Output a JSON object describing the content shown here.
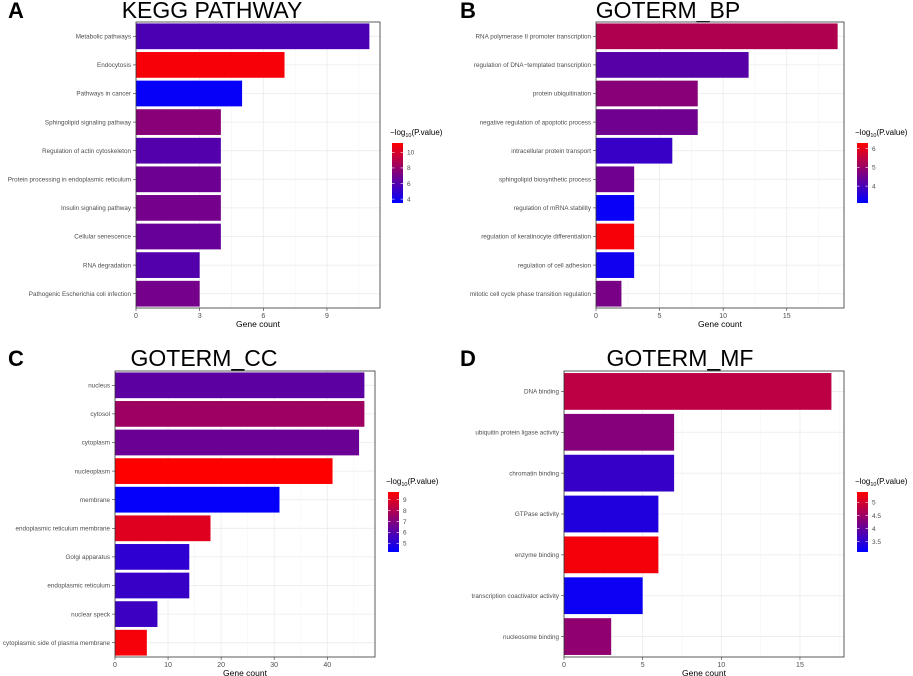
{
  "chart_data": [
    {
      "panel": "A",
      "title": "KEGG PATHWAY",
      "type": "bar",
      "orientation": "horizontal",
      "xlabel": "Gene count",
      "ylabel": "",
      "xlim": [
        0,
        11.5
      ],
      "xticks": [
        0,
        3,
        6,
        9
      ],
      "categories": [
        "Metabolic pathways",
        "Endocytosis",
        "Pathways in cancer",
        "Sphingolipid signaling pathway",
        "Regulation of actin cytoskeleton",
        "Protein processing in endoplasmic reticulum",
        "Insulin signaling pathway",
        "Cellular senescence",
        "RNA degradation",
        "Pathogenic Escherichia coli infection"
      ],
      "values": [
        11,
        7,
        5,
        4,
        4,
        4,
        4,
        4,
        3,
        3
      ],
      "color_values": [
        5.8,
        11.0,
        3.7,
        7.6,
        6.0,
        6.8,
        7.0,
        6.6,
        6.0,
        7.0
      ],
      "legend": {
        "title_pre": "−log",
        "title_sub": "10",
        "title_post": "(P.value)",
        "min": 3.5,
        "max": 11.2,
        "ticks": [
          4,
          6,
          8,
          10
        ]
      }
    },
    {
      "panel": "B",
      "title": "GOTERM_BP",
      "type": "bar",
      "orientation": "horizontal",
      "xlabel": "Gene count",
      "ylabel": "",
      "xlim": [
        0,
        19.5
      ],
      "xticks": [
        0,
        5,
        10,
        15
      ],
      "categories": [
        "RNA polymerase II promoter transcription",
        "regulation of DNA−templated transcription",
        "protein ubiquitination",
        "negative regulation of apoptotic process",
        "intracellular protein transport",
        "sphingolipid biosynthetic process",
        "regulation of mRNA stability",
        "regulation of keratinocyte differentiation",
        "regulation of cell adhesion",
        "mitotic cell cycle phase transition regulation"
      ],
      "values": [
        19,
        12,
        8,
        8,
        6,
        3,
        3,
        3,
        3,
        2
      ],
      "color_values": [
        5.3,
        4.2,
        4.8,
        4.5,
        3.8,
        4.5,
        3.2,
        6.2,
        3.3,
        4.6
      ],
      "legend": {
        "title_pre": "−log",
        "title_sub": "10",
        "title_post": "(P.value)",
        "min": 3.1,
        "max": 6.3,
        "ticks": [
          4,
          5,
          6
        ]
      }
    },
    {
      "panel": "C",
      "title": "GOTERM_CC",
      "type": "bar",
      "orientation": "horizontal",
      "xlabel": "Gene count",
      "ylabel": "",
      "xlim": [
        0,
        49
      ],
      "xticks": [
        0,
        10,
        20,
        30,
        40
      ],
      "categories": [
        "nucleus",
        "cytosol",
        "cytoplasm",
        "nucleoplasm",
        "membrane",
        "endoplasmic reticulum membrane",
        "Golgi apparatus",
        "endoplasmic reticulum",
        "nuclear speck",
        "cytoplasmic side of plasma membrane"
      ],
      "values": [
        47,
        47,
        46,
        41,
        31,
        18,
        14,
        14,
        8,
        6
      ],
      "color_values": [
        6.2,
        7.6,
        6.5,
        9.7,
        4.3,
        9.0,
        5.2,
        5.4,
        5.5,
        9.5
      ],
      "legend": {
        "title_pre": "−log",
        "title_sub": "10",
        "title_post": "(P.value)",
        "min": 4.2,
        "max": 9.7,
        "ticks": [
          5,
          6,
          7,
          8,
          9
        ]
      }
    },
    {
      "panel": "D",
      "title": "GOTERM_MF",
      "type": "bar",
      "orientation": "horizontal",
      "xlabel": "Gene count",
      "ylabel": "",
      "xlim": [
        0,
        17.8
      ],
      "xticks": [
        0,
        5,
        10,
        15
      ],
      "categories": [
        "DNA binding",
        "ubiquitin protein ligase activity",
        "chromatin binding",
        "GTPase activity",
        "enzyme binding",
        "transcription coactivator activity",
        "nucleosome binding"
      ],
      "values": [
        17,
        7,
        7,
        6,
        6,
        5,
        3
      ],
      "color_values": [
        4.8,
        4.3,
        3.6,
        3.4,
        5.3,
        3.2,
        4.4
      ],
      "legend": {
        "title_pre": "−log",
        "title_sub": "10",
        "title_post": "(P.value)",
        "min": 3.1,
        "max": 5.4,
        "ticks": [
          3.5,
          4.0,
          4.5,
          5.0
        ]
      }
    }
  ],
  "colors": {
    "low": "#0000ff",
    "high": "#ff0000",
    "grid_major": "#ebebeb",
    "grid_minor": "#f5f5f5",
    "panel_border": "#333333"
  }
}
